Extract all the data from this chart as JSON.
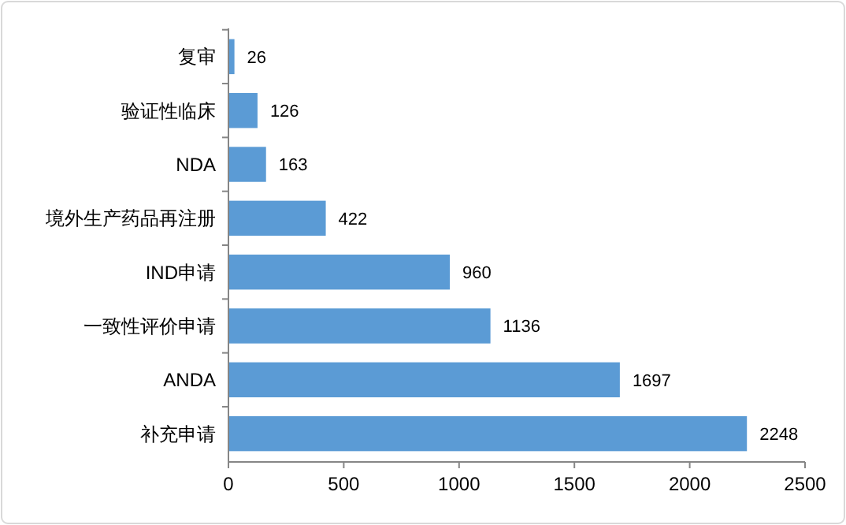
{
  "chart_data": {
    "type": "bar",
    "orientation": "horizontal",
    "categories": [
      "复审",
      "验证性临床",
      "NDA",
      "境外生产药品再注册",
      "IND申请",
      "一致性评价申请",
      "ANDA",
      "补充申请"
    ],
    "values": [
      26,
      126,
      163,
      422,
      960,
      1136,
      1697,
      2248
    ],
    "color": "#5b9bd5",
    "xlim": [
      0,
      2500
    ],
    "xticks": [
      0,
      500,
      1000,
      1500,
      2000,
      2500
    ],
    "data_labels": true
  }
}
